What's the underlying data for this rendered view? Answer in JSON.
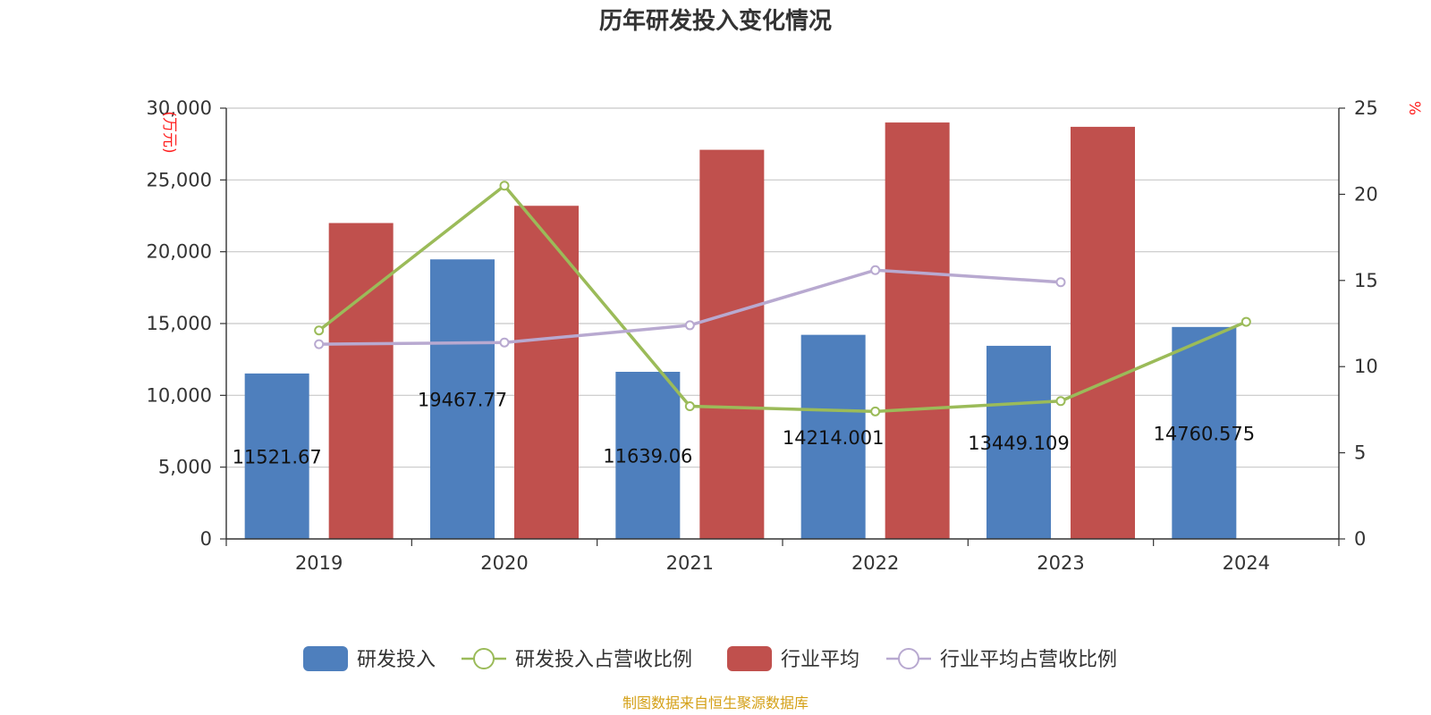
{
  "chart_data": {
    "type": "bar",
    "title": "历年研发投入变化情况",
    "categories": [
      "2019",
      "2020",
      "2021",
      "2022",
      "2023",
      "2024"
    ],
    "y_left": {
      "unit": "(万元)",
      "ylim": [
        0,
        30000
      ],
      "ticks": [
        "0",
        "5,000",
        "10,000",
        "15,000",
        "20,000",
        "25,000",
        "30,000"
      ]
    },
    "y_right": {
      "unit": "%",
      "ylim": [
        0,
        25
      ],
      "ticks": [
        "0",
        "5",
        "10",
        "15",
        "20",
        "25"
      ]
    },
    "series": [
      {
        "name": "研发投入",
        "kind": "bar",
        "axis": "left",
        "color": "#4e7fbd",
        "values": [
          11521.67,
          19467.77,
          11639.06,
          14214.001,
          13449.109,
          14760.575
        ],
        "labels": [
          "11521.67",
          "19467.77",
          "11639.06",
          "14214.001",
          "13449.109",
          "14760.575"
        ]
      },
      {
        "name": "研发投入占营收比例",
        "kind": "line",
        "axis": "right",
        "color": "#9bbb59",
        "values": [
          12.1,
          20.5,
          7.7,
          7.4,
          8.0,
          12.6
        ]
      },
      {
        "name": "行业平均",
        "kind": "bar",
        "axis": "left",
        "color": "#c0504d",
        "values": [
          22000,
          23200,
          27100,
          29000,
          28700,
          null
        ]
      },
      {
        "name": "行业平均占营收比例",
        "kind": "line",
        "axis": "right",
        "color": "#b8a9d0",
        "values": [
          11.3,
          11.4,
          12.4,
          15.6,
          14.9,
          null
        ]
      }
    ],
    "grid": true,
    "legend_position": "bottom"
  },
  "source_note": "制图数据来自恒生聚源数据库"
}
